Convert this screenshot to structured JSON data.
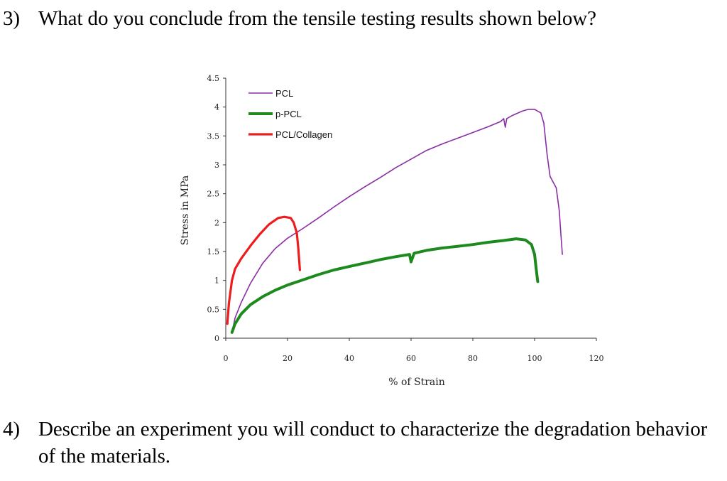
{
  "questions": [
    {
      "number": "3)",
      "text": "What do you conclude from the tensile testing results shown below?"
    },
    {
      "number": "4)",
      "text": "Describe an experiment you will conduct to characterize the degradation behavior of the materials."
    }
  ],
  "chart_data": {
    "type": "line",
    "title": "",
    "xlabel": "% of Strain",
    "ylabel": "Stress in MPa",
    "xlim": [
      0,
      120
    ],
    "ylim": [
      0,
      4.5
    ],
    "xticks": [
      0,
      20,
      40,
      60,
      80,
      100,
      120
    ],
    "yticks": [
      "0",
      "0.5",
      "1",
      "1.5",
      "2",
      "2.5",
      "3",
      "3.5",
      "4",
      "4.5"
    ],
    "grid": false,
    "legend_position": "top-left",
    "series": [
      {
        "name": "PCL",
        "color": "#8a2ea6",
        "points": [
          [
            2,
            0.1
          ],
          [
            3,
            0.35
          ],
          [
            5,
            0.62
          ],
          [
            8,
            0.95
          ],
          [
            12,
            1.3
          ],
          [
            16,
            1.55
          ],
          [
            20,
            1.73
          ],
          [
            25,
            1.9
          ],
          [
            30,
            2.08
          ],
          [
            35,
            2.27
          ],
          [
            40,
            2.45
          ],
          [
            45,
            2.62
          ],
          [
            50,
            2.78
          ],
          [
            55,
            2.95
          ],
          [
            60,
            3.1
          ],
          [
            65,
            3.25
          ],
          [
            70,
            3.36
          ],
          [
            75,
            3.46
          ],
          [
            80,
            3.56
          ],
          [
            85,
            3.66
          ],
          [
            89,
            3.75
          ],
          [
            90,
            3.8
          ],
          [
            90.5,
            3.65
          ],
          [
            91,
            3.8
          ],
          [
            93,
            3.86
          ],
          [
            96,
            3.93
          ],
          [
            98,
            3.96
          ],
          [
            100,
            3.96
          ],
          [
            102,
            3.9
          ],
          [
            103,
            3.72
          ],
          [
            104,
            3.2
          ],
          [
            105,
            2.8
          ],
          [
            107,
            2.6
          ],
          [
            108,
            2.2
          ],
          [
            108.5,
            1.8
          ],
          [
            109,
            1.45
          ]
        ]
      },
      {
        "name": "p-PCL",
        "color": "#1c8a1c",
        "points": [
          [
            2,
            0.1
          ],
          [
            3,
            0.25
          ],
          [
            5,
            0.42
          ],
          [
            8,
            0.58
          ],
          [
            12,
            0.72
          ],
          [
            16,
            0.83
          ],
          [
            20,
            0.92
          ],
          [
            25,
            1.01
          ],
          [
            30,
            1.1
          ],
          [
            35,
            1.18
          ],
          [
            40,
            1.24
          ],
          [
            45,
            1.3
          ],
          [
            50,
            1.36
          ],
          [
            55,
            1.41
          ],
          [
            59.5,
            1.45
          ],
          [
            60,
            1.32
          ],
          [
            61,
            1.47
          ],
          [
            65,
            1.52
          ],
          [
            70,
            1.56
          ],
          [
            75,
            1.59
          ],
          [
            80,
            1.62
          ],
          [
            85,
            1.66
          ],
          [
            90,
            1.69
          ],
          [
            94,
            1.72
          ],
          [
            97,
            1.7
          ],
          [
            99,
            1.62
          ],
          [
            100,
            1.45
          ],
          [
            100.5,
            1.2
          ],
          [
            101,
            0.98
          ]
        ]
      },
      {
        "name": "PCL/Collagen",
        "color": "#ee1c1c",
        "points": [
          [
            0.5,
            0.25
          ],
          [
            1,
            0.6
          ],
          [
            2,
            1.0
          ],
          [
            3,
            1.2
          ],
          [
            5,
            1.38
          ],
          [
            8,
            1.6
          ],
          [
            11,
            1.8
          ],
          [
            14,
            1.97
          ],
          [
            17,
            2.08
          ],
          [
            19,
            2.1
          ],
          [
            21,
            2.08
          ],
          [
            22,
            2.0
          ],
          [
            23,
            1.82
          ],
          [
            23.5,
            1.55
          ],
          [
            24,
            1.18
          ]
        ]
      }
    ]
  }
}
